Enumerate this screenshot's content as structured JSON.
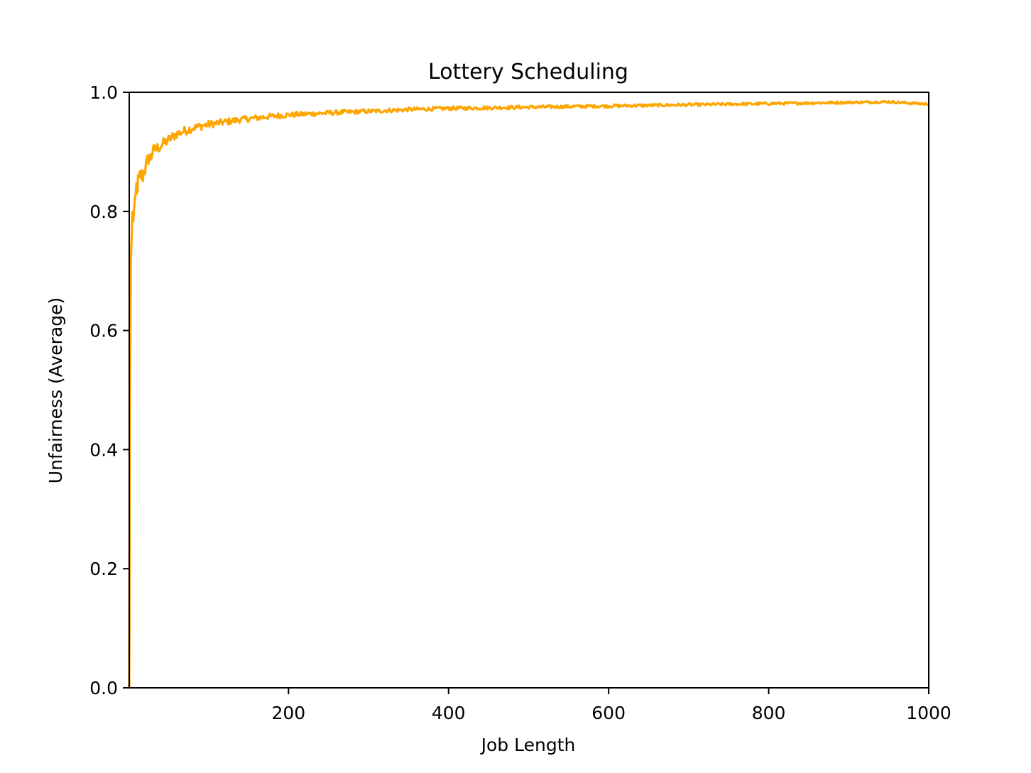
{
  "chart_data": {
    "type": "line",
    "title": "Lottery Scheduling",
    "xlabel": "Job Length",
    "ylabel": "Unfairness (Average)",
    "xlim": [
      1,
      1000
    ],
    "ylim": [
      0.0,
      1.0
    ],
    "xticks": [
      200,
      400,
      600,
      800,
      1000
    ],
    "xtick_labels": [
      "200",
      "400",
      "600",
      "800",
      "1000"
    ],
    "yticks": [
      0.0,
      0.2,
      0.4,
      0.6,
      0.8,
      1.0
    ],
    "ytick_labels": [
      "0.0",
      "0.2",
      "0.4",
      "0.6",
      "0.8",
      "1.0"
    ],
    "grid": false,
    "legend": "none",
    "series": [
      {
        "color": "#FFA500",
        "x": [
          1,
          2,
          3,
          5,
          8,
          10,
          13,
          15,
          18,
          20,
          23,
          25,
          28,
          30,
          35,
          40,
          45,
          50,
          55,
          60,
          70,
          80,
          90,
          100,
          120,
          140,
          160,
          180,
          200,
          230,
          260,
          300,
          350,
          400,
          450,
          500,
          550,
          600,
          650,
          700,
          750,
          800,
          850,
          900,
          950,
          1000
        ],
        "y": [
          0.0,
          0.5,
          0.72,
          0.79,
          0.8,
          0.84,
          0.85,
          0.86,
          0.86,
          0.87,
          0.88,
          0.89,
          0.89,
          0.9,
          0.905,
          0.91,
          0.915,
          0.92,
          0.925,
          0.93,
          0.935,
          0.94,
          0.943,
          0.946,
          0.95,
          0.954,
          0.957,
          0.96,
          0.962,
          0.964,
          0.966,
          0.968,
          0.971,
          0.973,
          0.974,
          0.975,
          0.976,
          0.977,
          0.978,
          0.979,
          0.98,
          0.981,
          0.982,
          0.983,
          0.984,
          0.98
        ]
      }
    ]
  }
}
